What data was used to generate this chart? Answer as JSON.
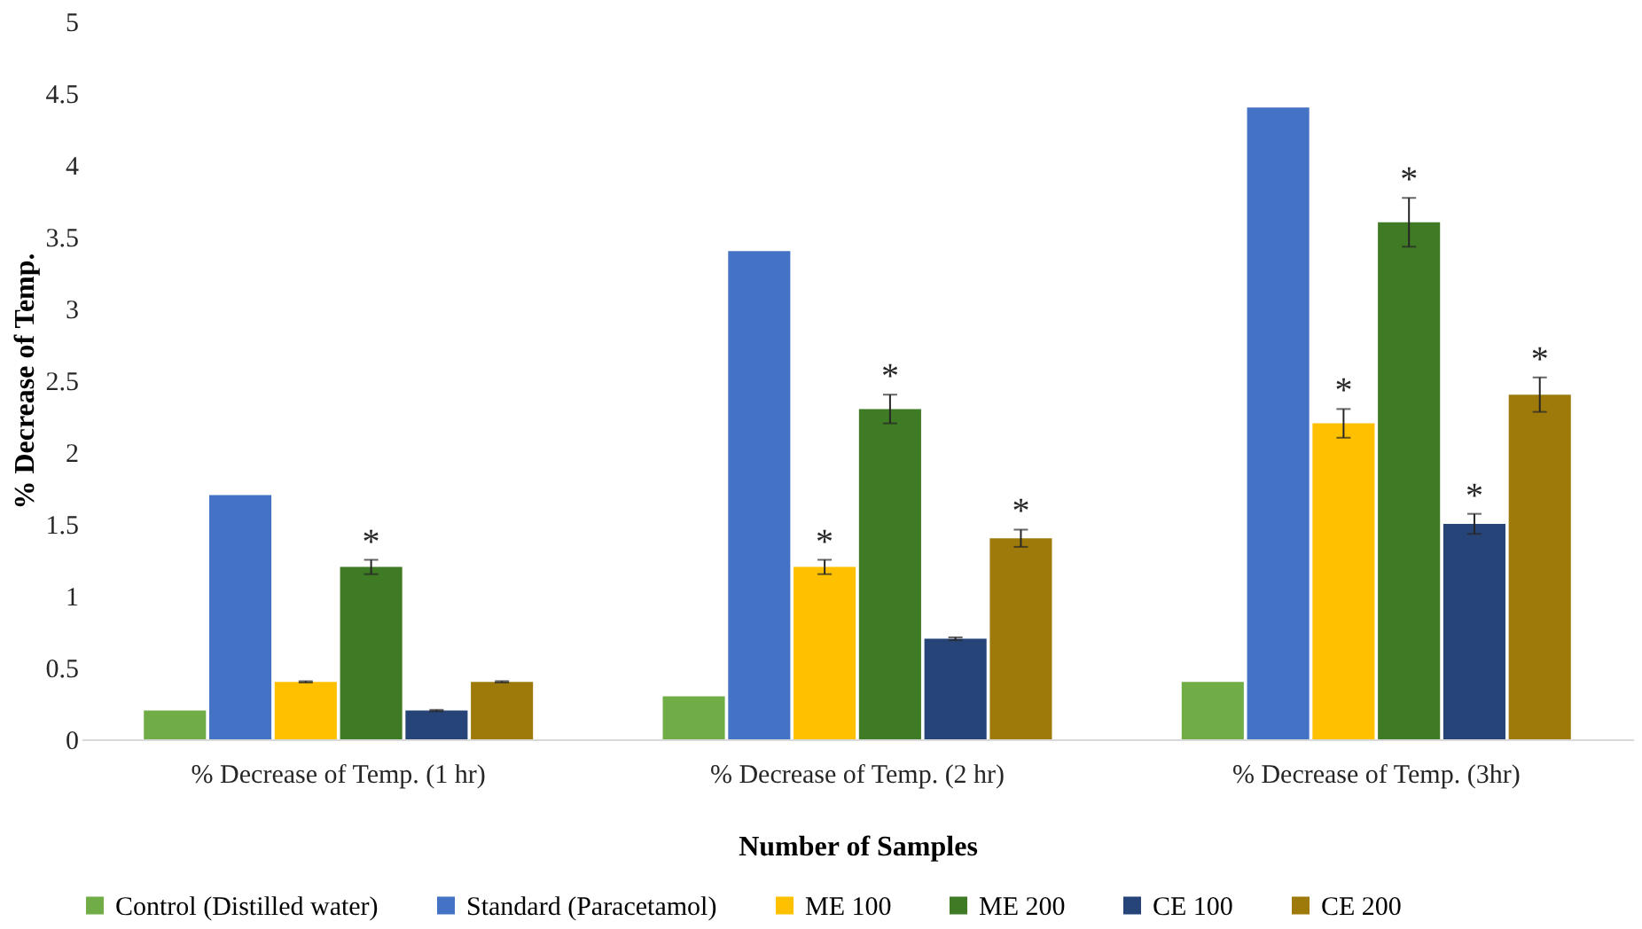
{
  "chart_data": {
    "type": "bar",
    "xlabel": "Number of Samples",
    "ylabel": "% Decrease of Temp.",
    "categories": [
      "% Decrease of Temp. (1 hr)",
      "% Decrease of Temp. (2 hr)",
      "% Decrease of Temp. (3hr)"
    ],
    "series": [
      {
        "name": "Control (Distilled water)",
        "color": "#70ad47",
        "values": [
          0.2,
          0.3,
          0.4
        ]
      },
      {
        "name": "Standard (Paracetamol)",
        "color": "#4472c4",
        "values": [
          1.7,
          3.4,
          4.4
        ]
      },
      {
        "name": "ME 100",
        "color": "#ffc000",
        "values": [
          0.4,
          1.2,
          2.2
        ],
        "errors": [
          0.005,
          0.05,
          0.1
        ],
        "value_labels": [
          null,
          "*",
          "*"
        ]
      },
      {
        "name": "ME 200",
        "color": "#3f7a24",
        "values": [
          1.2,
          2.3,
          3.6
        ],
        "errors": [
          0.05,
          0.1,
          0.17
        ],
        "value_labels": [
          "*",
          "*",
          "*"
        ]
      },
      {
        "name": "CE 100",
        "color": "#264478",
        "values": [
          0.2,
          0.7,
          1.5
        ],
        "errors": [
          0.005,
          0.01,
          0.07
        ],
        "value_labels": [
          null,
          null,
          "*"
        ]
      },
      {
        "name": "CE 200",
        "color": "#9e7a0b",
        "values": [
          0.4,
          1.4,
          2.4
        ],
        "errors": [
          0.005,
          0.06,
          0.12
        ],
        "value_labels": [
          null,
          "*",
          "*"
        ]
      }
    ],
    "ylim": [
      0,
      5
    ],
    "yticks": [
      0,
      0.5,
      1,
      1.5,
      2,
      2.5,
      3,
      3.5,
      4,
      4.5,
      5
    ],
    "grid": false,
    "legend": "bottom"
  }
}
